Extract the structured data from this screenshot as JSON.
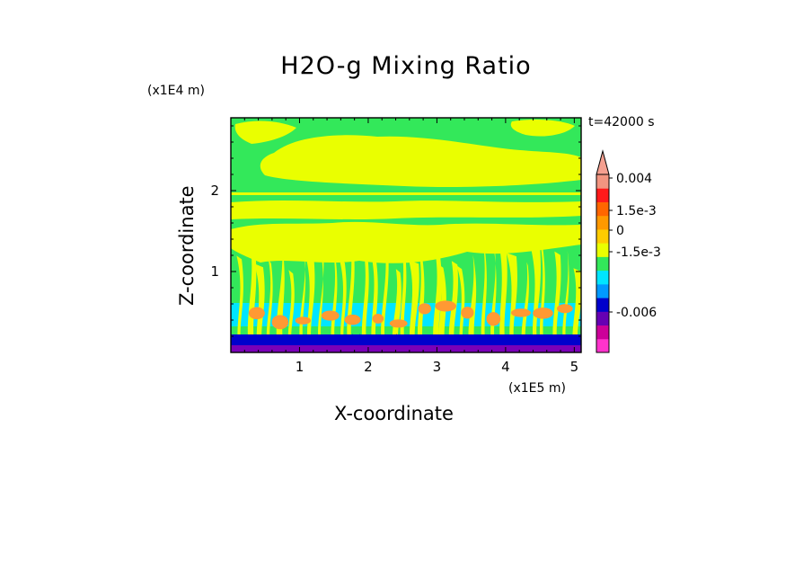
{
  "chart_data": {
    "type": "heatmap",
    "title": "H2O-g Mixing Ratio",
    "time_label": "t=42000 s",
    "xlabel": "X-coordinate",
    "ylabel": "Z-coordinate",
    "x_unit": "(x1E5 m)",
    "y_unit": "(x1E4 m)",
    "xlim": [
      0.0,
      5.1
    ],
    "ylim": [
      0.0,
      2.9
    ],
    "x_ticks": [
      1,
      2,
      3,
      4,
      5
    ],
    "y_ticks": [
      1,
      2
    ],
    "x_tick_labels": [
      "1",
      "2",
      "3",
      "4",
      "5"
    ],
    "y_tick_labels": [
      "1",
      "2"
    ],
    "grid": false,
    "colorbar": {
      "colors": [
        "#ff33cc",
        "#cc0099",
        "#6600b3",
        "#0000cc",
        "#0099ff",
        "#00e5ff",
        "#33e85a",
        "#eaff00",
        "#ffcc00",
        "#ff9900",
        "#ff6600",
        "#ff1a1a",
        "#f29580"
      ],
      "labels": [
        "0.004",
        "1.5e-3",
        "0",
        "-1.5e-3",
        "-0.006"
      ],
      "extend_max": true,
      "extend_color": "#f5a090"
    },
    "colors": {
      "background_field": "#33e85a",
      "upper_layer": "#eaff00",
      "boundary_layer": "#00e5ff",
      "updraft_core": "#ff9933",
      "near_surface_dry": "#0000cc",
      "surface": "#7a00b8"
    }
  }
}
